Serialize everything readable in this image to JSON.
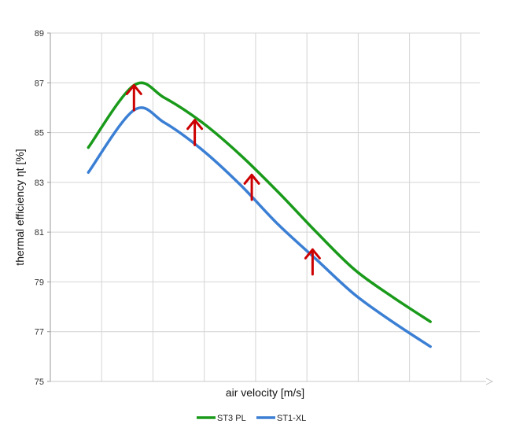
{
  "chart_data": {
    "type": "line",
    "title": "",
    "xlabel": "air velocity [m/s]",
    "ylabel": "thermal efficiency ηt [%]",
    "ylim": [
      75,
      89
    ],
    "yticks": [
      "75",
      "77",
      "79",
      "81",
      "83",
      "85",
      "87",
      "89"
    ],
    "x_tick_labels_shown": false,
    "grid": true,
    "legend_position": "bottom",
    "series": [
      {
        "name": "ST3 PL",
        "color": "#1a9a1a",
        "points": [
          [
            1.0,
            84.4
          ],
          [
            2.2,
            86.9
          ],
          [
            3.0,
            86.4
          ],
          [
            4.0,
            85.4
          ],
          [
            5.0,
            84.1
          ],
          [
            6.0,
            82.6
          ],
          [
            7.0,
            81.0
          ],
          [
            8.0,
            79.5
          ],
          [
            9.0,
            78.4
          ],
          [
            10.0,
            77.4
          ]
        ]
      },
      {
        "name": "ST1-XL",
        "color": "#3b7fd4",
        "points": [
          [
            1.0,
            83.4
          ],
          [
            2.2,
            85.9
          ],
          [
            3.0,
            85.4
          ],
          [
            4.0,
            84.3
          ],
          [
            5.0,
            82.9
          ],
          [
            6.0,
            81.3
          ],
          [
            7.0,
            79.9
          ],
          [
            8.0,
            78.5
          ],
          [
            9.0,
            77.4
          ],
          [
            10.0,
            76.4
          ]
        ]
      }
    ],
    "annotations": [
      {
        "type": "arrow-up",
        "color": "#cc0000",
        "x": 2.2,
        "from": 85.9,
        "to": 86.9
      },
      {
        "type": "arrow-up",
        "color": "#cc0000",
        "x": 3.8,
        "from": 84.5,
        "to": 85.5
      },
      {
        "type": "arrow-up",
        "color": "#cc0000",
        "x": 5.3,
        "from": 82.3,
        "to": 83.3
      },
      {
        "type": "arrow-up",
        "color": "#cc0000",
        "x": 6.9,
        "from": 79.3,
        "to": 80.3
      }
    ]
  }
}
